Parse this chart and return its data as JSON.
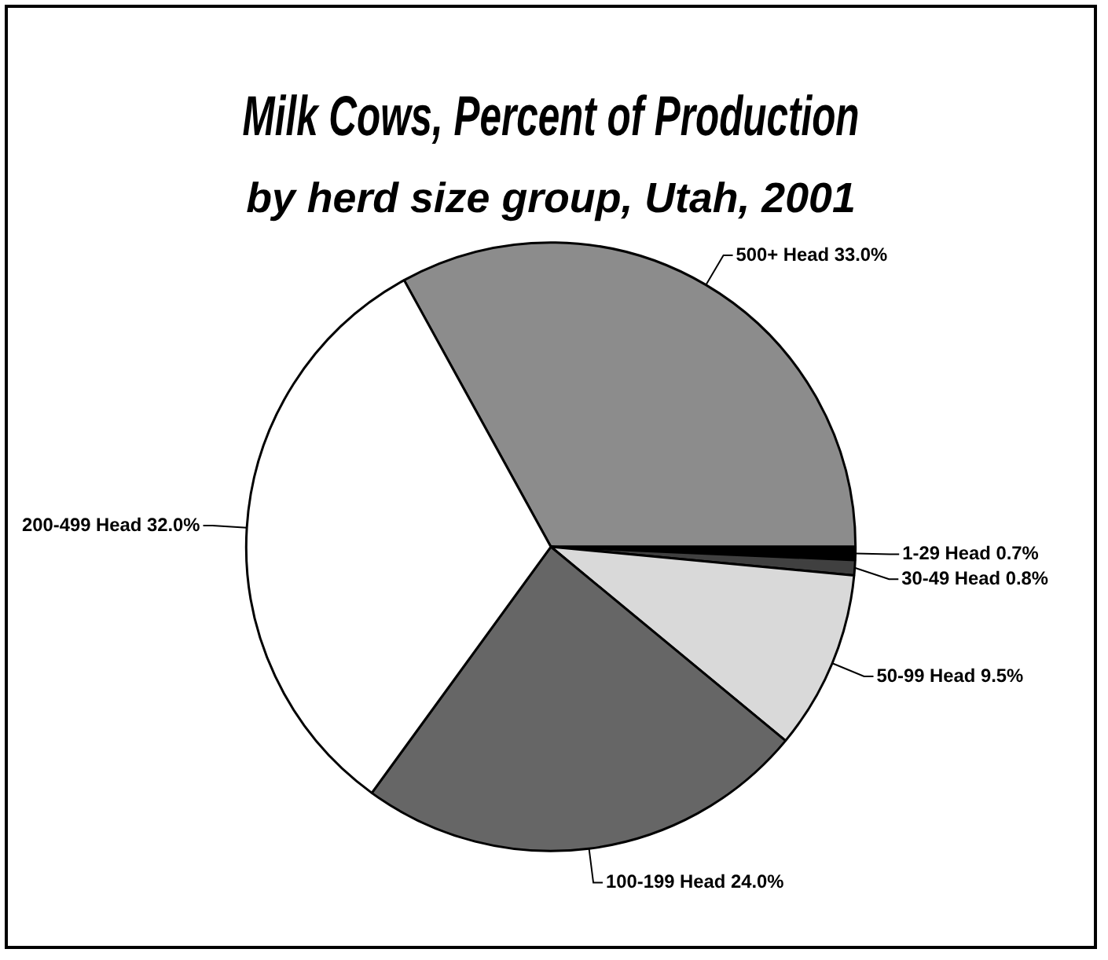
{
  "chart_data": {
    "type": "pie",
    "title": "Milk Cows, Percent of Production",
    "subtitle": "by herd size group, Utah, 2001",
    "categories": [
      "500+ Head",
      "1-29 Head",
      "30-49 Head",
      "50-99 Head",
      "100-199 Head",
      "200-499 Head"
    ],
    "values": [
      33.0,
      0.7,
      0.8,
      9.5,
      24.0,
      32.0
    ],
    "value_labels": [
      "33.0%",
      "0.7%",
      "0.8%",
      "9.5%",
      "24.0%",
      "32.0%"
    ],
    "colors": [
      "#8c8c8c",
      "#000000",
      "#404040",
      "#d9d9d9",
      "#666666",
      "#ffffff"
    ],
    "legend": false
  }
}
